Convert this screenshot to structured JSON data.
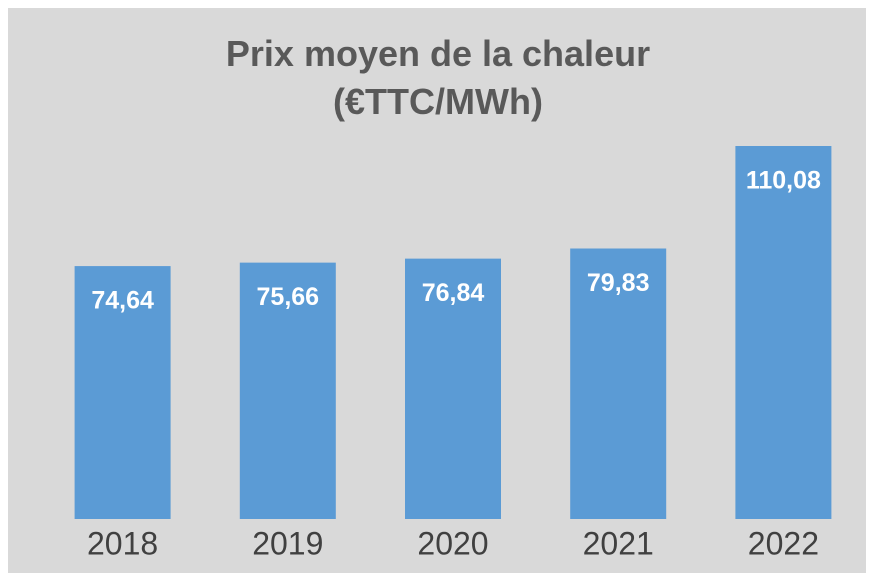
{
  "chart_data": {
    "type": "bar",
    "title": "Prix moyen de la chaleur (€TTC/MWh)",
    "categories": [
      "2018",
      "2019",
      "2020",
      "2021",
      "2022"
    ],
    "values": [
      74.64,
      75.66,
      76.84,
      79.83,
      110.08
    ],
    "value_labels": [
      "74,64",
      "75,66",
      "76,84",
      "79,83",
      "110,08"
    ],
    "color": "#5b9bd5"
  }
}
